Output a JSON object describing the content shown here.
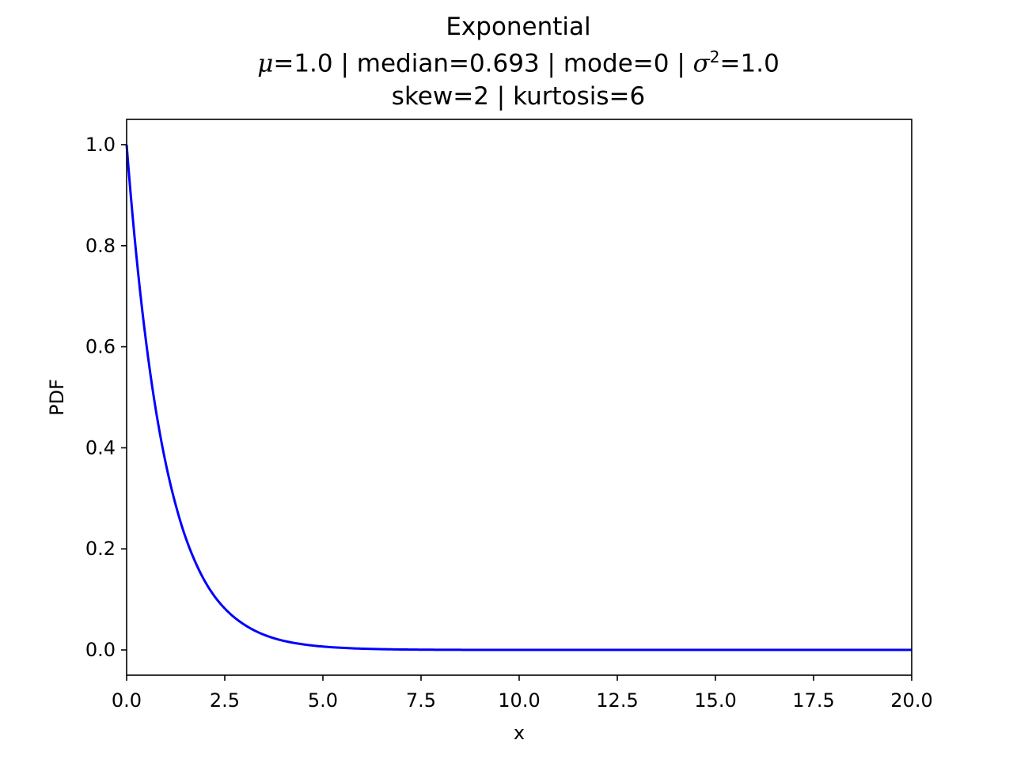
{
  "chart_data": {
    "type": "line",
    "title": "Exponential",
    "subtitle_parts": {
      "mu_symbol": "μ",
      "mu_rest": "=1.0 | median=0.693 | mode=0 | ",
      "sigma_symbol": "σ",
      "sigma_exp": "2",
      "sigma_rest": "=1.0"
    },
    "subtitle2": "skew=2 | kurtosis=6",
    "xlabel": "x",
    "ylabel": "PDF",
    "xlim": [
      0,
      20
    ],
    "ylim": [
      -0.05,
      1.05
    ],
    "xticks": [
      0,
      2.5,
      5,
      7.5,
      10,
      12.5,
      15,
      17.5,
      20
    ],
    "xtick_labels": [
      "0.0",
      "2.5",
      "5.0",
      "7.5",
      "10.0",
      "12.5",
      "15.0",
      "17.5",
      "20.0"
    ],
    "yticks": [
      0,
      0.2,
      0.4,
      0.6,
      0.8,
      1.0
    ],
    "ytick_labels": [
      "0.0",
      "0.2",
      "0.4",
      "0.6",
      "0.8",
      "1.0"
    ],
    "grid": false,
    "series": [
      {
        "color": "#0000ff",
        "x": [
          0,
          0.25,
          0.5,
          0.75,
          1.0,
          1.25,
          1.5,
          1.75,
          2.0,
          2.25,
          2.5,
          2.75,
          3.0,
          3.5,
          4.0,
          4.5,
          5.0,
          5.5,
          6.0,
          7.0,
          8.0,
          9.0,
          10.0,
          12.5,
          15.0,
          17.5,
          20.0
        ],
        "y": [
          1.0,
          0.779,
          0.607,
          0.472,
          0.368,
          0.287,
          0.223,
          0.174,
          0.135,
          0.105,
          0.082,
          0.064,
          0.05,
          0.03,
          0.018,
          0.011,
          0.0067,
          0.0041,
          0.0025,
          0.0009,
          0.0003,
          0.0001,
          5e-05,
          0.0,
          0.0,
          0.0,
          0.0
        ]
      }
    ]
  }
}
